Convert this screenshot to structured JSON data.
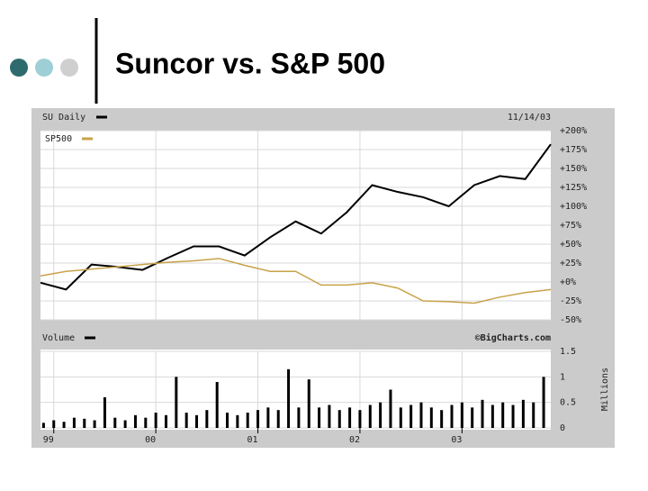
{
  "slide": {
    "title": "Suncor vs. S&P 500"
  },
  "chart_data": [
    {
      "type": "line",
      "title": "SU Daily",
      "date": "11/14/03",
      "x": [
        1998.87,
        1999.12,
        1999.37,
        1999.62,
        1999.87,
        2000.12,
        2000.37,
        2000.62,
        2000.87,
        2001.12,
        2001.37,
        2001.62,
        2001.87,
        2002.12,
        2002.37,
        2002.62,
        2002.87,
        2003.12,
        2003.37,
        2003.62,
        2003.87
      ],
      "xlim": [
        1998.87,
        2003.87
      ],
      "series": [
        {
          "name": "SU Daily",
          "color": "#000000",
          "values": [
            -1,
            -10,
            23,
            20,
            16,
            32,
            47,
            47,
            35,
            59,
            80,
            64,
            92,
            128,
            119,
            112,
            100,
            128,
            140,
            136,
            182
          ]
        },
        {
          "name": "SP500",
          "color": "#c8a24a",
          "values": [
            8,
            14,
            17,
            20,
            23,
            26,
            28,
            31,
            22,
            14,
            14,
            -4,
            -4,
            -1,
            -8,
            -25,
            -26,
            -28,
            -20,
            -14,
            -10
          ]
        }
      ],
      "ylim": [
        -50,
        200
      ],
      "yticks": [
        {
          "value": 200,
          "label": "+200%"
        },
        {
          "value": 175,
          "label": "+175%"
        },
        {
          "value": 150,
          "label": "+150%"
        },
        {
          "value": 125,
          "label": "+125%"
        },
        {
          "value": 100,
          "label": "+100%"
        },
        {
          "value": 75,
          "label": "+75%"
        },
        {
          "value": 50,
          "label": "+50%"
        },
        {
          "value": 25,
          "label": "+25%"
        },
        {
          "value": 0,
          "label": "+0%"
        },
        {
          "value": -25,
          "label": "-25%"
        },
        {
          "value": -50,
          "label": "-50%"
        }
      ],
      "grid": true
    },
    {
      "type": "bar",
      "title": "Volume",
      "source": "©BigCharts.com",
      "ylabel": "Millions",
      "color": "#000000",
      "x": [
        1998.9,
        1999.0,
        1999.1,
        1999.2,
        1999.3,
        1999.4,
        1999.5,
        1999.6,
        1999.7,
        1999.8,
        1999.9,
        2000.0,
        2000.1,
        2000.2,
        2000.3,
        2000.4,
        2000.5,
        2000.6,
        2000.7,
        2000.8,
        2000.9,
        2001.0,
        2001.1,
        2001.2,
        2001.3,
        2001.4,
        2001.5,
        2001.6,
        2001.7,
        2001.8,
        2001.9,
        2002.0,
        2002.1,
        2002.2,
        2002.3,
        2002.4,
        2002.5,
        2002.6,
        2002.7,
        2002.8,
        2002.9,
        2003.0,
        2003.1,
        2003.2,
        2003.3,
        2003.4,
        2003.5,
        2003.6,
        2003.7,
        2003.8
      ],
      "values": [
        0.1,
        0.15,
        0.12,
        0.2,
        0.18,
        0.15,
        0.6,
        0.2,
        0.15,
        0.25,
        0.2,
        0.3,
        0.25,
        1.0,
        0.3,
        0.25,
        0.35,
        0.9,
        0.3,
        0.25,
        0.3,
        0.35,
        0.4,
        0.35,
        1.15,
        0.4,
        0.95,
        0.4,
        0.45,
        0.35,
        0.4,
        0.35,
        0.45,
        0.5,
        0.75,
        0.4,
        0.45,
        0.5,
        0.4,
        0.35,
        0.45,
        0.5,
        0.4,
        0.55,
        0.45,
        0.5,
        0.45,
        0.55,
        0.5,
        1.0
      ],
      "xlim": [
        1998.87,
        2003.87
      ],
      "xticks": [
        {
          "value": 1999,
          "label": "99"
        },
        {
          "value": 2000,
          "label": "00"
        },
        {
          "value": 2001,
          "label": "01"
        },
        {
          "value": 2002,
          "label": "02"
        },
        {
          "value": 2003,
          "label": "03"
        }
      ],
      "ylim": [
        0,
        1.5
      ],
      "yticks": [
        1.5,
        1,
        0.5,
        0
      ],
      "grid": true
    }
  ]
}
